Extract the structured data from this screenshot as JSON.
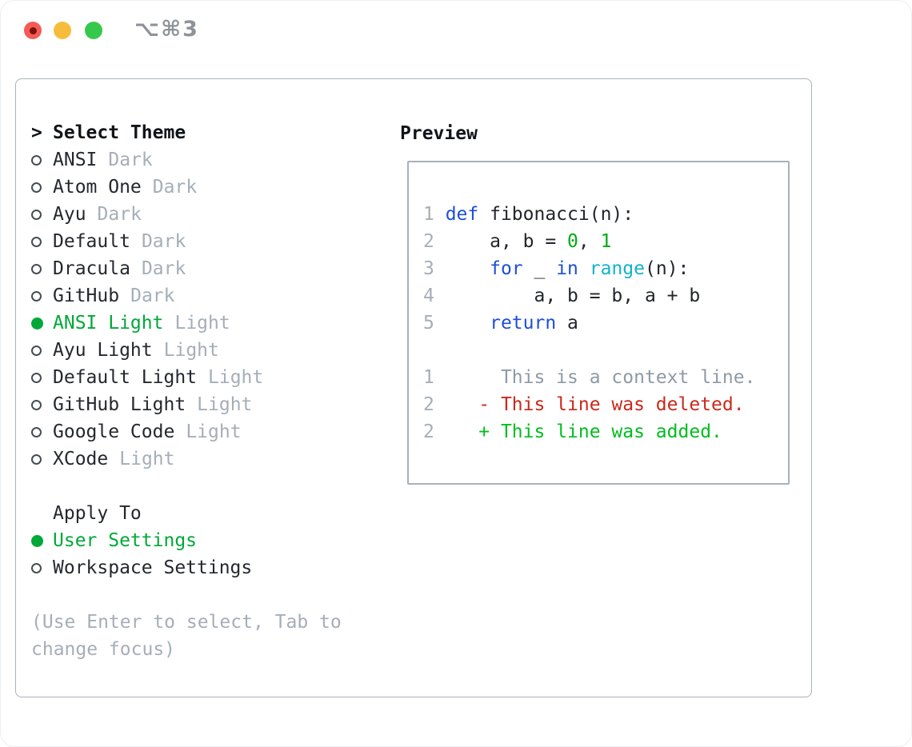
{
  "window": {
    "shortcut": "⌥⌘3"
  },
  "colors": {
    "accent_green": "#00a838",
    "keyword_blue": "#1d4fd8",
    "builtin_cyan": "#12b2ca",
    "number_green": "#00ab12",
    "added_green": "#00bd1f",
    "deleted_red": "#c9291b",
    "muted_gray": "#a5aeb8",
    "context_gray": "#8f9aa5",
    "text_dark": "#22262c",
    "border_gray": "#a9b1bb",
    "traffic_red": "#f25c54",
    "traffic_yellow": "#f6bd3d",
    "traffic_green": "#36c84d"
  },
  "theme_selector": {
    "prompt": ">",
    "title": "Select Theme",
    "items": [
      {
        "label": "ANSI",
        "variant": "Dark",
        "selected": false
      },
      {
        "label": "Atom One",
        "variant": "Dark",
        "selected": false
      },
      {
        "label": "Ayu",
        "variant": "Dark",
        "selected": false
      },
      {
        "label": "Default",
        "variant": "Dark",
        "selected": false
      },
      {
        "label": "Dracula",
        "variant": "Dark",
        "selected": false
      },
      {
        "label": "GitHub",
        "variant": "Dark",
        "selected": false
      },
      {
        "label": "ANSI Light",
        "variant": "Light",
        "selected": true
      },
      {
        "label": "Ayu Light",
        "variant": "Light",
        "selected": false
      },
      {
        "label": "Default Light",
        "variant": "Light",
        "selected": false
      },
      {
        "label": "GitHub Light",
        "variant": "Light",
        "selected": false
      },
      {
        "label": "Google Code",
        "variant": "Light",
        "selected": false
      },
      {
        "label": "XCode",
        "variant": "Light",
        "selected": false
      }
    ]
  },
  "apply_to": {
    "title": "Apply To",
    "options": [
      {
        "label": "User Settings",
        "selected": true
      },
      {
        "label": "Workspace Settings",
        "selected": false
      }
    ]
  },
  "help_lines": [
    "(Use Enter to select, Tab to",
    "change focus)"
  ],
  "preview": {
    "title": "Preview",
    "lines": [
      {
        "type": "code",
        "segments": [
          [
            "1 ",
            "num"
          ],
          [
            "def",
            "blue"
          ],
          [
            " fibonacci(n):",
            "fg"
          ]
        ]
      },
      {
        "type": "code",
        "segments": [
          [
            "2 ",
            "num"
          ],
          [
            "    a, b = ",
            "fg"
          ],
          [
            "0",
            "grn"
          ],
          [
            ", ",
            "fg"
          ],
          [
            "1",
            "grn"
          ]
        ]
      },
      {
        "type": "code",
        "segments": [
          [
            "3 ",
            "num"
          ],
          [
            "    ",
            "fg"
          ],
          [
            "for",
            "blue"
          ],
          [
            " _ ",
            "fg"
          ],
          [
            "in",
            "blue"
          ],
          [
            " ",
            "fg"
          ],
          [
            "range",
            "cyan"
          ],
          [
            "(n):",
            "fg"
          ]
        ]
      },
      {
        "type": "code",
        "segments": [
          [
            "4 ",
            "num"
          ],
          [
            "        a, b = b, a + b",
            "fg"
          ]
        ]
      },
      {
        "type": "code",
        "segments": [
          [
            "5 ",
            "num"
          ],
          [
            "    ",
            "fg"
          ],
          [
            "return",
            "blue"
          ],
          [
            " a",
            "fg"
          ]
        ]
      },
      {
        "type": "blank",
        "segments": []
      },
      {
        "type": "diff-context",
        "segments": [
          [
            "1",
            "num"
          ],
          [
            "      This is a context line.",
            "ctx"
          ]
        ]
      },
      {
        "type": "diff-deleted",
        "segments": [
          [
            "2",
            "num"
          ],
          [
            "    ",
            "fg"
          ],
          [
            "- This line was deleted.",
            "red"
          ]
        ]
      },
      {
        "type": "diff-added",
        "segments": [
          [
            "2",
            "num"
          ],
          [
            "    ",
            "fg"
          ],
          [
            "+ This line was added.",
            "add"
          ]
        ]
      }
    ]
  }
}
